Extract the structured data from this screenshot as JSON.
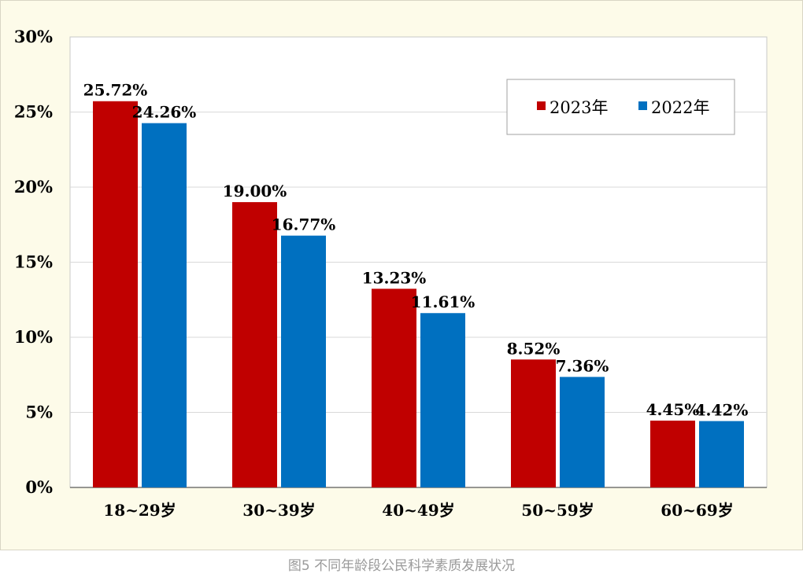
{
  "chart_data": {
    "type": "bar",
    "categories": [
      "18~29岁",
      "30~39岁",
      "40~49岁",
      "50~59岁",
      "60~69岁"
    ],
    "series": [
      {
        "name": "2023年",
        "color": "#c00000",
        "values": [
          25.72,
          19.0,
          13.23,
          8.52,
          4.45
        ],
        "labels": [
          "25.72%",
          "19.00%",
          "13.23%",
          "8.52%",
          "4.45%"
        ]
      },
      {
        "name": "2022年",
        "color": "#0070c0",
        "values": [
          24.26,
          16.77,
          11.61,
          7.36,
          4.42
        ],
        "labels": [
          "24.26%",
          "16.77%",
          "11.61%",
          "7.36%",
          "4.42%"
        ]
      }
    ],
    "ylim": [
      0,
      30
    ],
    "yticks": [
      0,
      5,
      10,
      15,
      20,
      25,
      30
    ],
    "ytick_labels": [
      "0%",
      "5%",
      "10%",
      "15%",
      "20%",
      "25%",
      "30%"
    ],
    "grid": true,
    "legend_position": "top-right",
    "xlabel": "",
    "ylabel": ""
  },
  "caption": "图5 不同年龄段公民科学素质发展状况"
}
